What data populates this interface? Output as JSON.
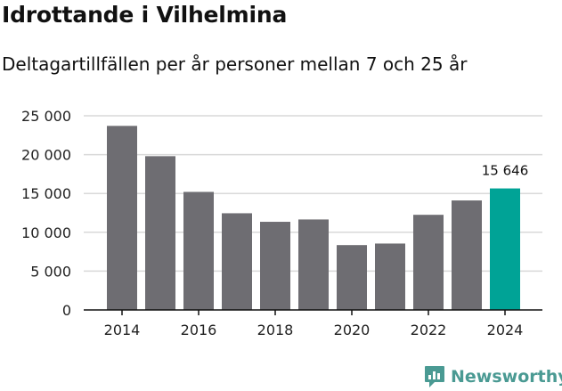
{
  "header": {
    "title": "Idrottande i Vilhelmina",
    "subtitle": "Deltagartillfällen per år personer mellan 7 och 25 år"
  },
  "brand": {
    "name": "Newsworthy",
    "icon": "newsworthy-logo-icon",
    "color": "#4a9a93"
  },
  "colors": {
    "bar": "#6e6d72",
    "highlight": "#00a396",
    "grid": "#d9d9d9",
    "axis": "#111111"
  },
  "chart_data": {
    "type": "bar",
    "title": "Idrottande i Vilhelmina",
    "subtitle": "Deltagartillfällen per år personer mellan 7 och 25 år",
    "categories": [
      "2014",
      "2015",
      "2016",
      "2017",
      "2018",
      "2019",
      "2020",
      "2021",
      "2022",
      "2023",
      "2024"
    ],
    "values": [
      23700,
      19800,
      15200,
      12450,
      11350,
      11650,
      8350,
      8550,
      12250,
      14100,
      15646
    ],
    "x_tick_labels": [
      "2014",
      "2016",
      "2018",
      "2020",
      "2022",
      "2024"
    ],
    "y_tick_labels": [
      "0",
      "5 000",
      "10 000",
      "15 000",
      "20 000",
      "25 000"
    ],
    "y_ticks": [
      0,
      5000,
      10000,
      15000,
      20000,
      25000
    ],
    "ylim": [
      0,
      25000
    ],
    "highlight_index": 10,
    "data_labels": [
      {
        "index": 10,
        "text": "15 646"
      }
    ],
    "grid": true,
    "legend": "none"
  }
}
